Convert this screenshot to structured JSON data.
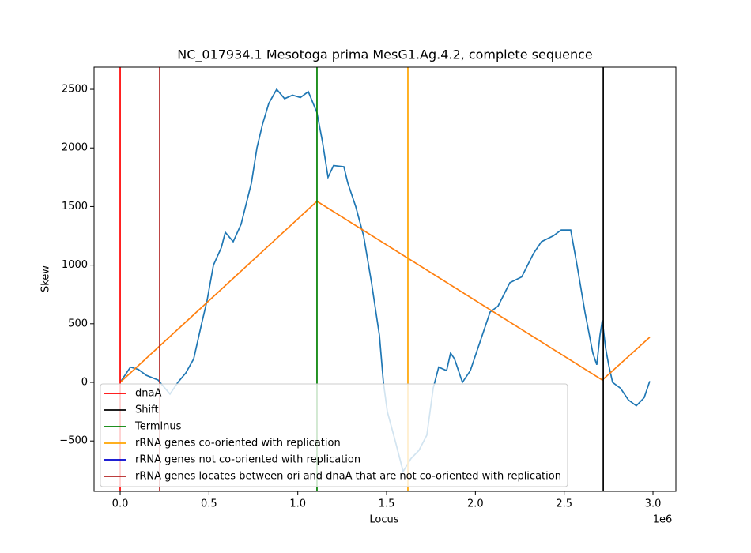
{
  "chart_data": {
    "type": "line",
    "title": "NC_017934.1 Mesotoga prima MesG1.Ag.4.2, complete sequence",
    "x_label": "Locus",
    "y_label": "Skew",
    "x_offset_label": "1e6",
    "xlim": [
      -147000,
      3129000
    ],
    "ylim": [
      -930,
      2689
    ],
    "xticks": [
      {
        "value": 0,
        "label": "0.0"
      },
      {
        "value": 500000,
        "label": "0.5"
      },
      {
        "value": 1000000,
        "label": "1.0"
      },
      {
        "value": 1500000,
        "label": "1.5"
      },
      {
        "value": 2000000,
        "label": "2.0"
      },
      {
        "value": 2500000,
        "label": "2.5"
      },
      {
        "value": 3000000,
        "label": "3.0"
      }
    ],
    "yticks": [
      {
        "value": -500,
        "label": "−500"
      },
      0,
      500,
      1000,
      1500,
      2000,
      2500
    ],
    "series": [
      {
        "color": "#1f77b4",
        "x": [
          0,
          35600,
          57900,
          102400,
          146900,
          213600,
          280400,
          324900,
          369400,
          413900,
          458400,
          489500,
          525100,
          569600,
          591900,
          636400,
          680900,
          738800,
          769900,
          801100,
          836700,
          881200,
          925700,
          970200,
          1014700,
          1059200,
          1094800,
          1108100,
          1139300,
          1170400,
          1201600,
          1259500,
          1281700,
          1326200,
          1370700,
          1415200,
          1459700,
          1482000,
          1504200,
          1548700,
          1593200,
          1637700,
          1682300,
          1726800,
          1762400,
          1793500,
          1838000,
          1860300,
          1882500,
          1927000,
          1971500,
          2016000,
          2082800,
          2127300,
          2194000,
          2260800,
          2327500,
          2372100,
          2438800,
          2483300,
          2536700,
          2572300,
          2616800,
          2661300,
          2683600,
          2701400,
          2714700,
          2732500,
          2750300,
          2772600,
          2817100,
          2861600,
          2906100,
          2950600,
          2981800
        ],
        "values": [
          0,
          80,
          130,
          110,
          60,
          20,
          -100,
          0,
          80,
          200,
          500,
          700,
          1000,
          1150,
          1280,
          1200,
          1350,
          1700,
          2000,
          2200,
          2380,
          2500,
          2420,
          2450,
          2430,
          2480,
          2350,
          2300,
          2050,
          1750,
          1850,
          1840,
          1700,
          1500,
          1250,
          850,
          400,
          0,
          -250,
          -500,
          -760,
          -650,
          -580,
          -450,
          -50,
          130,
          100,
          250,
          200,
          0,
          100,
          300,
          600,
          650,
          850,
          900,
          1100,
          1200,
          1250,
          1300,
          1300,
          1000,
          600,
          250,
          150,
          400,
          530,
          300,
          150,
          0,
          -50,
          -150,
          -200,
          -130,
          10
        ]
      },
      {
        "color": "#ff7f0e",
        "x": [
          0,
          1108100,
          2714700,
          2981800
        ],
        "values": [
          0,
          1545,
          20,
          385
        ]
      }
    ],
    "vertical_lines": [
      {
        "name": "dnaA",
        "color": "#ff0000",
        "x": [
          0
        ]
      },
      {
        "name": "Shift",
        "color": "#000000",
        "x": [
          2720000
        ]
      },
      {
        "name": "Terminus",
        "color": "#008000",
        "x": [
          1108100
        ]
      },
      {
        "name": "rRNA genes co-oriented with replication",
        "color": "#ffa500",
        "x": [
          1620000
        ]
      },
      {
        "name": "rRNA genes not co-oriented with replication",
        "color": "#0000cd",
        "x": []
      },
      {
        "name": "rRNA genes locates between ori and dnaA that are not co-oriented with replication",
        "color": "#b22222",
        "x": [
          222500
        ]
      }
    ],
    "legend": "lower left"
  }
}
